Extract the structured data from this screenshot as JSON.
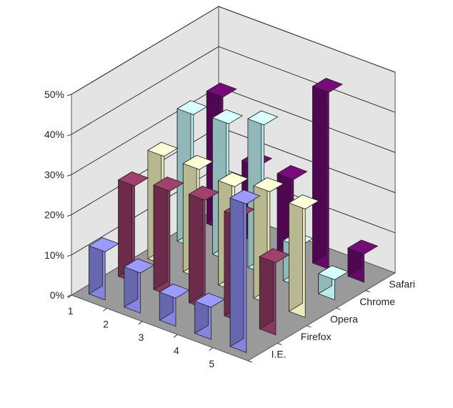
{
  "chart_data": {
    "type": "bar",
    "subtype": "3d-column",
    "categories": [
      "1",
      "2",
      "3",
      "4",
      "5"
    ],
    "series": [
      {
        "name": "I.E.",
        "color": "#8f8ff5",
        "values": [
          12,
          10,
          7,
          8,
          37
        ]
      },
      {
        "name": "Firefox",
        "color": "#943c66",
        "values": [
          24,
          26,
          27,
          26,
          18
        ]
      },
      {
        "name": "Opera",
        "color": "#ffffc8",
        "values": [
          27,
          27,
          26,
          28,
          27
        ]
      },
      {
        "name": "Chrome",
        "color": "#c8ffff",
        "values": [
          33,
          34,
          37,
          10,
          5
        ]
      },
      {
        "name": "Safari",
        "color": "#6e0a70",
        "values": [
          33,
          19,
          19,
          44,
          7
        ]
      }
    ],
    "ylim": [
      0,
      50
    ],
    "y_ticks": [
      "0%",
      "10%",
      "20%",
      "30%",
      "40%",
      "50%"
    ],
    "grid": true,
    "wall_color": "#e4e4e4",
    "floor_color": "#9a9a9a"
  }
}
